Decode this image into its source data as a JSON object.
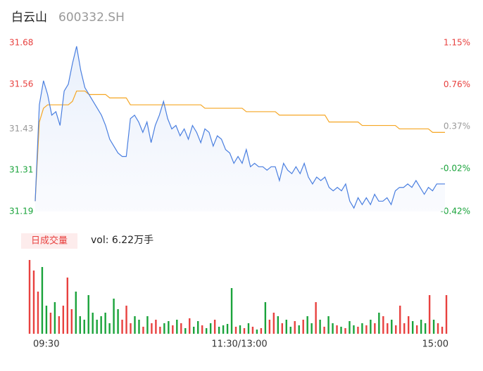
{
  "chart_data": {
    "type": "intraday",
    "title": "白云山",
    "subtitle": "600332.SH",
    "volume_badge": "日成交量",
    "volume_text": "vol: 6.22万手",
    "ylim": [
      31.19,
      31.68
    ],
    "yticks": [
      31.19,
      31.31,
      31.43,
      31.56,
      31.68
    ],
    "y2lim": [
      -0.42,
      1.15
    ],
    "y2ticks": [
      {
        "value": -0.42,
        "label": "-0.42%"
      },
      {
        "value": -0.02,
        "label": "-0.02%"
      },
      {
        "value": 0.37,
        "label": "0.37%"
      },
      {
        "value": 0.76,
        "label": "0.76%"
      },
      {
        "value": 1.15,
        "label": "1.15%"
      }
    ],
    "xtick_labels": [
      "09:30",
      "11:30/13:00",
      "15:00"
    ],
    "up_color": "#e8413f",
    "down_color": "#1aa33b",
    "series": [
      {
        "name": "price",
        "color": "#4a7fe0",
        "values": [
          31.22,
          31.5,
          31.57,
          31.53,
          31.47,
          31.48,
          31.44,
          31.54,
          31.56,
          31.62,
          31.67,
          31.6,
          31.55,
          31.53,
          31.51,
          31.49,
          31.47,
          31.44,
          31.4,
          31.38,
          31.36,
          31.35,
          31.35,
          31.46,
          31.47,
          31.45,
          31.42,
          31.45,
          31.39,
          31.44,
          31.47,
          31.51,
          31.46,
          31.43,
          31.44,
          31.41,
          31.43,
          31.4,
          31.44,
          31.42,
          31.39,
          31.43,
          31.42,
          31.38,
          31.41,
          31.4,
          31.37,
          31.36,
          31.33,
          31.35,
          31.33,
          31.37,
          31.32,
          31.33,
          31.32,
          31.32,
          31.31,
          31.32,
          31.32,
          31.28,
          31.33,
          31.31,
          31.3,
          31.32,
          31.3,
          31.33,
          31.29,
          31.27,
          31.29,
          31.28,
          31.29,
          31.26,
          31.25,
          31.26,
          31.25,
          31.27,
          31.22,
          31.2,
          31.23,
          31.21,
          31.23,
          31.21,
          31.24,
          31.22,
          31.22,
          31.23,
          31.21,
          31.25,
          31.26,
          31.26,
          31.27,
          31.26,
          31.28,
          31.26,
          31.24,
          31.26,
          31.25,
          31.27,
          31.27,
          31.27
        ]
      },
      {
        "name": "average",
        "color": "#f5a623",
        "values": [
          31.22,
          31.45,
          31.49,
          31.5,
          31.5,
          31.5,
          31.5,
          31.5,
          31.5,
          31.51,
          31.54,
          31.54,
          31.54,
          31.53,
          31.53,
          31.53,
          31.53,
          31.53,
          31.52,
          31.52,
          31.52,
          31.52,
          31.52,
          31.5,
          31.5,
          31.5,
          31.5,
          31.5,
          31.5,
          31.5,
          31.5,
          31.5,
          31.5,
          31.5,
          31.5,
          31.5,
          31.5,
          31.5,
          31.5,
          31.5,
          31.5,
          31.49,
          31.49,
          31.49,
          31.49,
          31.49,
          31.49,
          31.49,
          31.49,
          31.49,
          31.49,
          31.48,
          31.48,
          31.48,
          31.48,
          31.48,
          31.48,
          31.48,
          31.48,
          31.47,
          31.47,
          31.47,
          31.47,
          31.47,
          31.47,
          31.47,
          31.47,
          31.47,
          31.47,
          31.47,
          31.47,
          31.45,
          31.45,
          31.45,
          31.45,
          31.45,
          31.45,
          31.45,
          31.45,
          31.44,
          31.44,
          31.44,
          31.44,
          31.44,
          31.44,
          31.44,
          31.44,
          31.44,
          31.43,
          31.43,
          31.43,
          31.43,
          31.43,
          31.43,
          31.43,
          31.43,
          31.42,
          31.42,
          31.42,
          31.42
        ]
      }
    ],
    "volume": {
      "ylim": [
        0,
        110
      ],
      "values": [
        105,
        90,
        60,
        95,
        40,
        30,
        45,
        25,
        40,
        80,
        35,
        60,
        25,
        20,
        55,
        30,
        20,
        25,
        30,
        15,
        50,
        35,
        20,
        40,
        15,
        25,
        20,
        10,
        25,
        15,
        20,
        10,
        15,
        18,
        12,
        20,
        15,
        8,
        22,
        10,
        18,
        12,
        8,
        15,
        20,
        10,
        12,
        14,
        65,
        10,
        12,
        8,
        15,
        10,
        6,
        8,
        45,
        20,
        30,
        25,
        15,
        20,
        10,
        18,
        12,
        20,
        25,
        15,
        45,
        20,
        10,
        25,
        15,
        12,
        10,
        8,
        18,
        12,
        10,
        15,
        12,
        20,
        15,
        30,
        25,
        15,
        20,
        12,
        40,
        15,
        25,
        18,
        12,
        20,
        15,
        55,
        20,
        15,
        10,
        55
      ]
    }
  }
}
